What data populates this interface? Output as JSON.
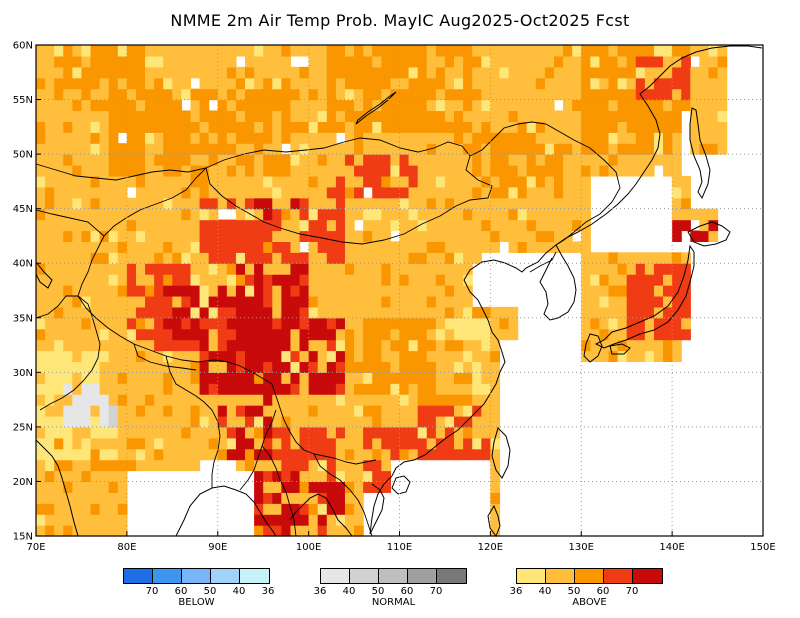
{
  "title": "NMME 2m Air Temp Prob. MayIC  Aug2025-Oct2025 Fcst",
  "chart_data": {
    "type": "heatmap",
    "title": "NMME 2m Air Temp Prob. MayIC  Aug2025-Oct2025 Fcst",
    "xlim": [
      70,
      150
    ],
    "ylim": [
      15,
      60
    ],
    "x_ticks": [
      "70E",
      "80E",
      "90E",
      "100E",
      "110E",
      "120E",
      "130E",
      "140E",
      "150E"
    ],
    "y_ticks": [
      "15N",
      "20N",
      "25N",
      "30N",
      "35N",
      "40N",
      "45N",
      "50N",
      "55N",
      "60N"
    ],
    "grid": true,
    "grid_style": "dotted",
    "regions": [
      {
        "category": "above",
        "level": 40,
        "lon": [
          70,
          150
        ],
        "lat": [
          15,
          60
        ],
        "note": "default background over land"
      },
      {
        "category": "above",
        "level": 50,
        "lon": [
          72,
          82
        ],
        "lat": [
          54,
          60
        ]
      },
      {
        "category": "above",
        "level": 50,
        "lon": [
          78,
          98
        ],
        "lat": [
          48,
          56
        ]
      },
      {
        "category": "above",
        "level": 50,
        "lon": [
          102,
          118
        ],
        "lat": [
          52,
          60
        ]
      },
      {
        "category": "above",
        "level": 50,
        "lon": [
          118,
          128
        ],
        "lat": [
          46,
          52
        ]
      },
      {
        "category": "above",
        "level": 50,
        "lon": [
          130,
          142
        ],
        "lat": [
          50,
          60
        ]
      },
      {
        "category": "above",
        "level": 50,
        "lon": [
          100,
          114
        ],
        "lat": [
          28,
          35
        ]
      },
      {
        "category": "above",
        "level": 50,
        "lon": [
          112,
          118
        ],
        "lat": [
          22,
          28
        ]
      },
      {
        "category": "above",
        "level": 60,
        "lon": [
          80,
          88
        ],
        "lat": [
          32,
          40
        ]
      },
      {
        "category": "above",
        "level": 60,
        "lon": [
          88,
          104
        ],
        "lat": [
          40,
          46
        ]
      },
      {
        "category": "above",
        "level": 60,
        "lon": [
          102,
          112
        ],
        "lat": [
          46,
          50
        ]
      },
      {
        "category": "above",
        "level": 60,
        "lon": [
          96,
          104
        ],
        "lat": [
          18,
          25
        ]
      },
      {
        "category": "above",
        "level": 60,
        "lon": [
          106,
          112
        ],
        "lat": [
          16,
          25
        ]
      },
      {
        "category": "above",
        "level": 60,
        "lon": [
          112,
          120
        ],
        "lat": [
          22,
          27
        ]
      },
      {
        "category": "above",
        "level": 70,
        "lon": [
          84,
          98
        ],
        "lat": [
          33,
          38
        ]
      },
      {
        "category": "above",
        "level": 70,
        "lon": [
          88,
          104
        ],
        "lat": [
          28,
          35
        ]
      },
      {
        "category": "above",
        "level": 70,
        "lon": [
          92,
          100
        ],
        "lat": [
          35,
          40
        ]
      },
      {
        "category": "above",
        "level": 70,
        "lon": [
          90,
          96
        ],
        "lat": [
          22,
          28
        ]
      },
      {
        "category": "above",
        "level": 70,
        "lon": [
          94,
          100
        ],
        "lat": [
          15,
          21
        ]
      },
      {
        "category": "above",
        "level": 70,
        "lon": [
          100,
          104
        ],
        "lat": [
          15,
          20
        ]
      },
      {
        "category": "above",
        "level": 70,
        "lon": [
          94,
          99
        ],
        "lat": [
          44,
          46
        ]
      },
      {
        "category": "above",
        "level": 70,
        "lon": [
          140,
          145
        ],
        "lat": [
          42,
          44
        ]
      },
      {
        "category": "above",
        "level": 60,
        "lon": [
          135,
          142
        ],
        "lat": [
          33,
          40
        ]
      },
      {
        "category": "above",
        "level": 60,
        "lon": [
          136,
          142
        ],
        "lat": [
          55,
          59
        ]
      },
      {
        "category": "above",
        "level": 36,
        "lon": [
          70,
          78
        ],
        "lat": [
          22,
          32
        ]
      },
      {
        "category": "above",
        "level": 36,
        "lon": [
          114,
          120
        ],
        "lat": [
          33,
          35
        ]
      },
      {
        "category": "normal",
        "level": 36,
        "lon": [
          73,
          78
        ],
        "lat": [
          25,
          29
        ]
      },
      {
        "category": "normal",
        "level": 40,
        "lon": [
          78,
          79.5
        ],
        "lat": [
          24,
          28
        ]
      }
    ]
  },
  "legend": {
    "below": {
      "label": "BELOW",
      "ticks": [
        "70",
        "60",
        "50",
        "40",
        "36"
      ],
      "colors": [
        "#1e6ee6",
        "#3c96f0",
        "#78b4f8",
        "#a0d2fa",
        "#c8f2fa"
      ]
    },
    "normal": {
      "label": "NORMAL",
      "ticks": [
        "36",
        "40",
        "50",
        "60",
        "70"
      ],
      "colors": [
        "#e6e6e6",
        "#d2d2d2",
        "#bebebe",
        "#a0a0a0",
        "#787878"
      ]
    },
    "above": {
      "label": "ABOVE",
      "ticks": [
        "36",
        "40",
        "50",
        "60",
        "70"
      ],
      "colors": [
        "#ffe678",
        "#ffbe3c",
        "#fa9600",
        "#f03c14",
        "#c80a0a"
      ]
    }
  }
}
